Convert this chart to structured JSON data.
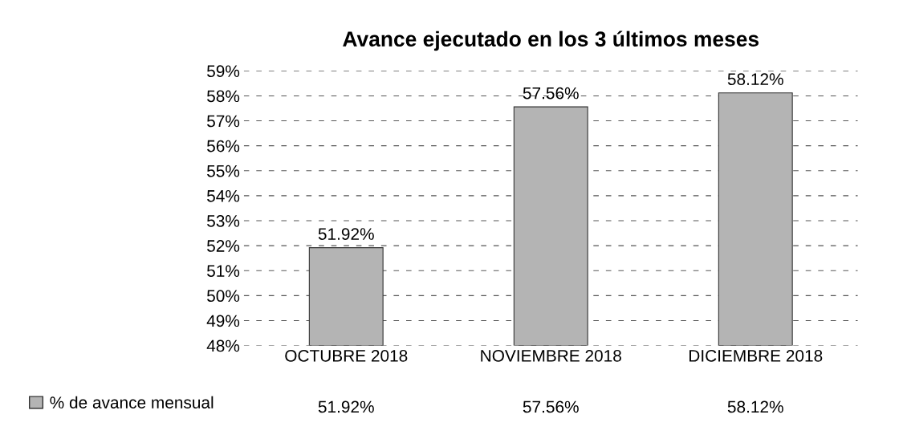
{
  "chart_data": {
    "type": "bar",
    "title": "Avance ejecutado en los 3 últimos meses",
    "categories": [
      "OCTUBRE 2018",
      "NOVIEMBRE 2018",
      "DICIEMBRE 2018"
    ],
    "series": [
      {
        "name": "% de avance mensual",
        "color": "#b4b4b4",
        "values": [
          51.92,
          57.56,
          58.12
        ],
        "value_labels": [
          "51.92%",
          "57.56%",
          "58.12%"
        ]
      }
    ],
    "ylim": [
      48,
      59
    ],
    "yticks": [
      {
        "value": 48,
        "label": "48%"
      },
      {
        "value": 49,
        "label": "49%"
      },
      {
        "value": 50,
        "label": "50%"
      },
      {
        "value": 51,
        "label": "51%"
      },
      {
        "value": 52,
        "label": "52%"
      },
      {
        "value": 53,
        "label": "53%"
      },
      {
        "value": 54,
        "label": "54%"
      },
      {
        "value": 55,
        "label": "55%"
      },
      {
        "value": 56,
        "label": "56%"
      },
      {
        "value": 57,
        "label": "57%"
      },
      {
        "value": 58,
        "label": "58%"
      },
      {
        "value": 59,
        "label": "59%"
      }
    ],
    "grid": "y",
    "legend": "bottom left"
  }
}
